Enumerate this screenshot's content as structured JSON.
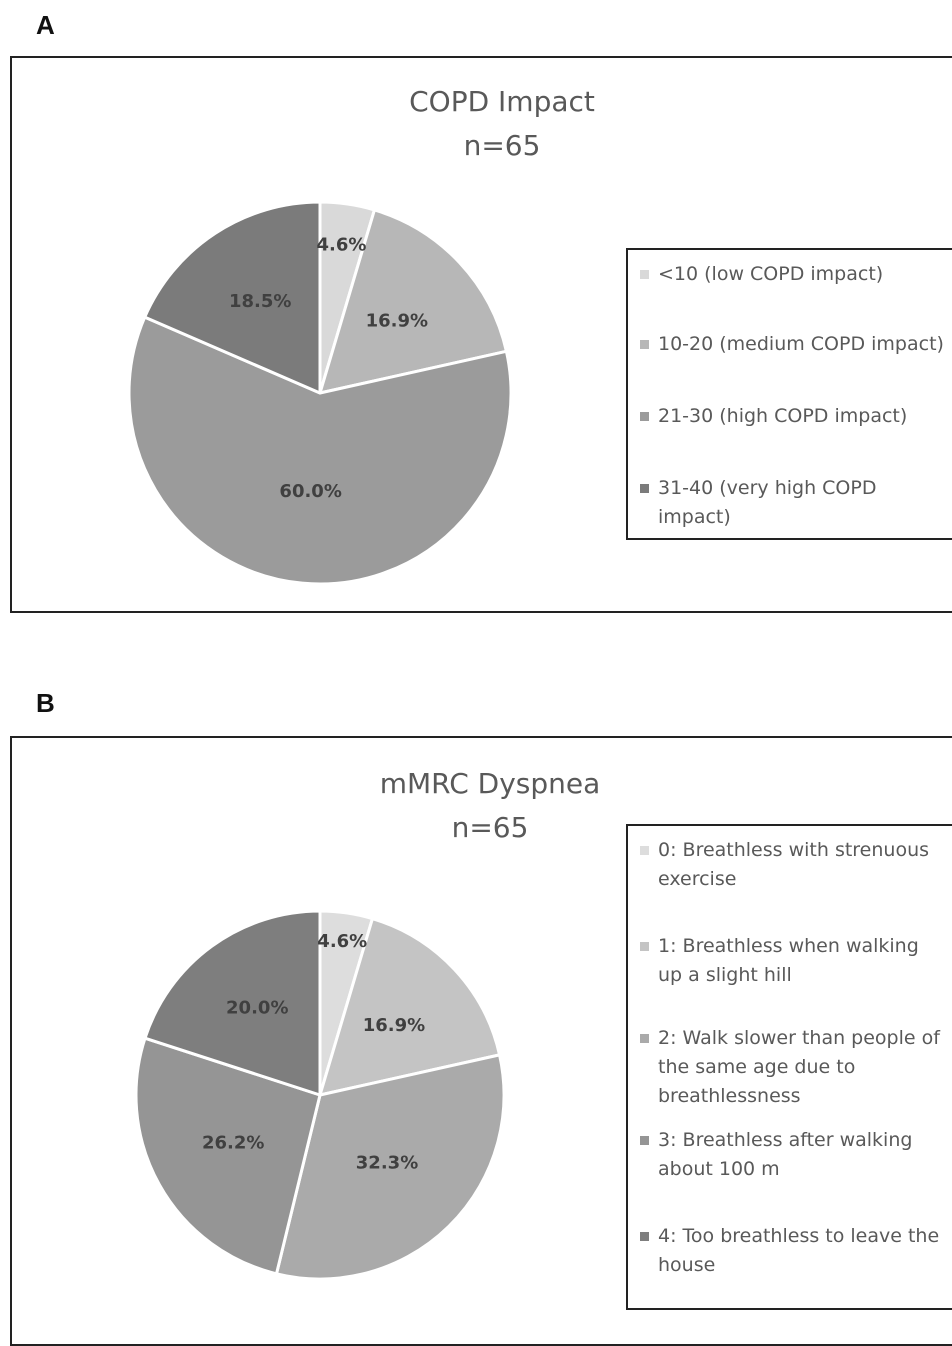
{
  "chart_data": [
    {
      "panel": "A",
      "type": "pie",
      "title": "COPD Impact",
      "subtitle": "n=65",
      "legend_position": "right",
      "slices": [
        {
          "label": "<10 (low COPD impact)",
          "value": 4.6,
          "value_label": "4.6%",
          "color": "#d9d9d9"
        },
        {
          "label": "10-20 (medium COPD impact)",
          "value": 16.9,
          "value_label": "16.9%",
          "color": "#b7b7b7"
        },
        {
          "label": "21-30 (high COPD impact)",
          "value": 60.0,
          "value_label": "60.0%",
          "color": "#9b9b9b"
        },
        {
          "label": "31-40 (very high COPD impact)",
          "value": 18.5,
          "value_label": "18.5%",
          "color": "#7b7b7b"
        }
      ]
    },
    {
      "panel": "B",
      "type": "pie",
      "title": "mMRC Dyspnea",
      "subtitle": "n=65",
      "legend_position": "right",
      "slices": [
        {
          "label": "0: Breathless with strenuous exercise",
          "value": 4.6,
          "value_label": "4.6%",
          "color": "#dddddd"
        },
        {
          "label": "1: Breathless when walking up a slight hill",
          "value": 16.9,
          "value_label": "16.9%",
          "color": "#c4c4c4"
        },
        {
          "label": "2: Walk slower than people of the same age due to breathlessness",
          "value": 32.3,
          "value_label": "32.3%",
          "color": "#aaaaaa"
        },
        {
          "label": "3: Breathless after walking about 100 m",
          "value": 26.2,
          "value_label": "26.2%",
          "color": "#959595"
        },
        {
          "label": "4: Too breathless to leave the house",
          "value": 20.0,
          "value_label": "20.0%",
          "color": "#7e7e7e"
        }
      ]
    }
  ]
}
